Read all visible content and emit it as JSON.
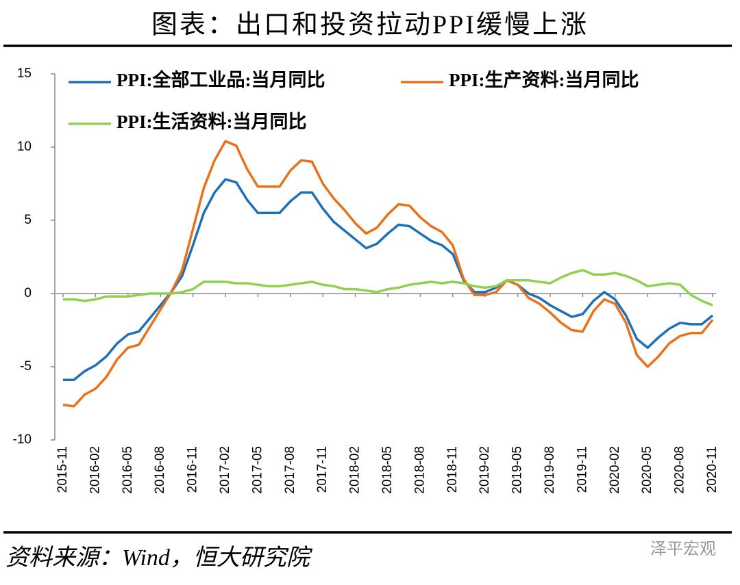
{
  "chart_data": {
    "type": "line",
    "title": "图表：出口和投资拉动PPI缓慢上涨",
    "source": "资料来源：Wind，恒大研究院",
    "watermark": "泽平宏观",
    "categories": [
      "2015-11",
      null,
      null,
      "2016-02",
      null,
      null,
      "2016-05",
      null,
      null,
      "2016-08",
      null,
      null,
      "2016-11",
      null,
      null,
      "2017-02",
      null,
      null,
      "2017-05",
      null,
      null,
      "2017-08",
      null,
      null,
      "2017-11",
      null,
      null,
      "2018-02",
      null,
      null,
      "2018-05",
      null,
      null,
      "2018-08",
      null,
      null,
      "2018-11",
      null,
      null,
      "2019-02",
      null,
      null,
      "2019-05",
      null,
      null,
      "2019-08",
      null,
      null,
      "2019-11",
      null,
      null,
      "2020-02",
      null,
      null,
      "2020-05",
      null,
      null,
      "2020-08",
      null,
      null,
      "2020-11"
    ],
    "series": [
      {
        "name": "PPI:全部工业品:当月同比",
        "color": "#1f6fb8",
        "values": [
          -5.9,
          -5.9,
          -5.3,
          -4.9,
          -4.3,
          -3.4,
          -2.8,
          -2.6,
          -1.7,
          -0.8,
          0.1,
          1.2,
          3.3,
          5.5,
          6.9,
          7.8,
          7.6,
          6.4,
          5.5,
          5.5,
          5.5,
          6.3,
          6.9,
          6.9,
          5.8,
          4.9,
          4.3,
          3.7,
          3.1,
          3.4,
          4.1,
          4.7,
          4.6,
          4.1,
          3.6,
          3.3,
          2.7,
          0.9,
          0.1,
          0.1,
          0.4,
          0.9,
          0.6,
          0.0,
          -0.3,
          -0.8,
          -1.2,
          -1.6,
          -1.4,
          -0.5,
          0.1,
          -0.4,
          -1.5,
          -3.1,
          -3.7,
          -3.0,
          -2.4,
          -2.0,
          -2.1,
          -2.1,
          -1.5
        ]
      },
      {
        "name": "PPI:生产资料:当月同比",
        "color": "#e8711c",
        "values": [
          -7.6,
          -7.7,
          -6.9,
          -6.5,
          -5.7,
          -4.5,
          -3.7,
          -3.5,
          -2.3,
          -1.1,
          0.1,
          1.6,
          4.4,
          7.2,
          9.1,
          10.4,
          10.1,
          8.5,
          7.3,
          7.3,
          7.3,
          8.4,
          9.1,
          9.0,
          7.5,
          6.5,
          5.7,
          4.8,
          4.1,
          4.5,
          5.4,
          6.1,
          6.0,
          5.2,
          4.6,
          4.2,
          3.3,
          1.0,
          -0.1,
          -0.1,
          0.1,
          0.9,
          0.6,
          -0.3,
          -0.7,
          -1.3,
          -2.0,
          -2.5,
          -2.6,
          -1.2,
          -0.4,
          -0.7,
          -2.0,
          -4.2,
          -5.0,
          -4.3,
          -3.4,
          -2.9,
          -2.7,
          -2.7,
          -1.8
        ]
      },
      {
        "name": "PPI:生活资料:当月同比",
        "color": "#8fd14f",
        "values": [
          -0.4,
          -0.4,
          -0.5,
          -0.4,
          -0.2,
          -0.2,
          -0.2,
          -0.1,
          0.0,
          0.0,
          0.0,
          0.1,
          0.3,
          0.8,
          0.8,
          0.8,
          0.7,
          0.7,
          0.6,
          0.5,
          0.5,
          0.6,
          0.7,
          0.8,
          0.6,
          0.5,
          0.3,
          0.3,
          0.2,
          0.1,
          0.3,
          0.4,
          0.6,
          0.7,
          0.8,
          0.7,
          0.8,
          0.7,
          0.5,
          0.4,
          0.5,
          0.9,
          0.9,
          0.9,
          0.8,
          0.7,
          1.1,
          1.4,
          1.6,
          1.3,
          1.3,
          1.4,
          1.2,
          0.9,
          0.5,
          0.6,
          0.7,
          0.6,
          -0.1,
          -0.5,
          -0.8
        ]
      }
    ],
    "ylim": [
      -10,
      15
    ],
    "yticks": [
      -10,
      -5,
      0,
      5,
      10,
      15
    ]
  }
}
